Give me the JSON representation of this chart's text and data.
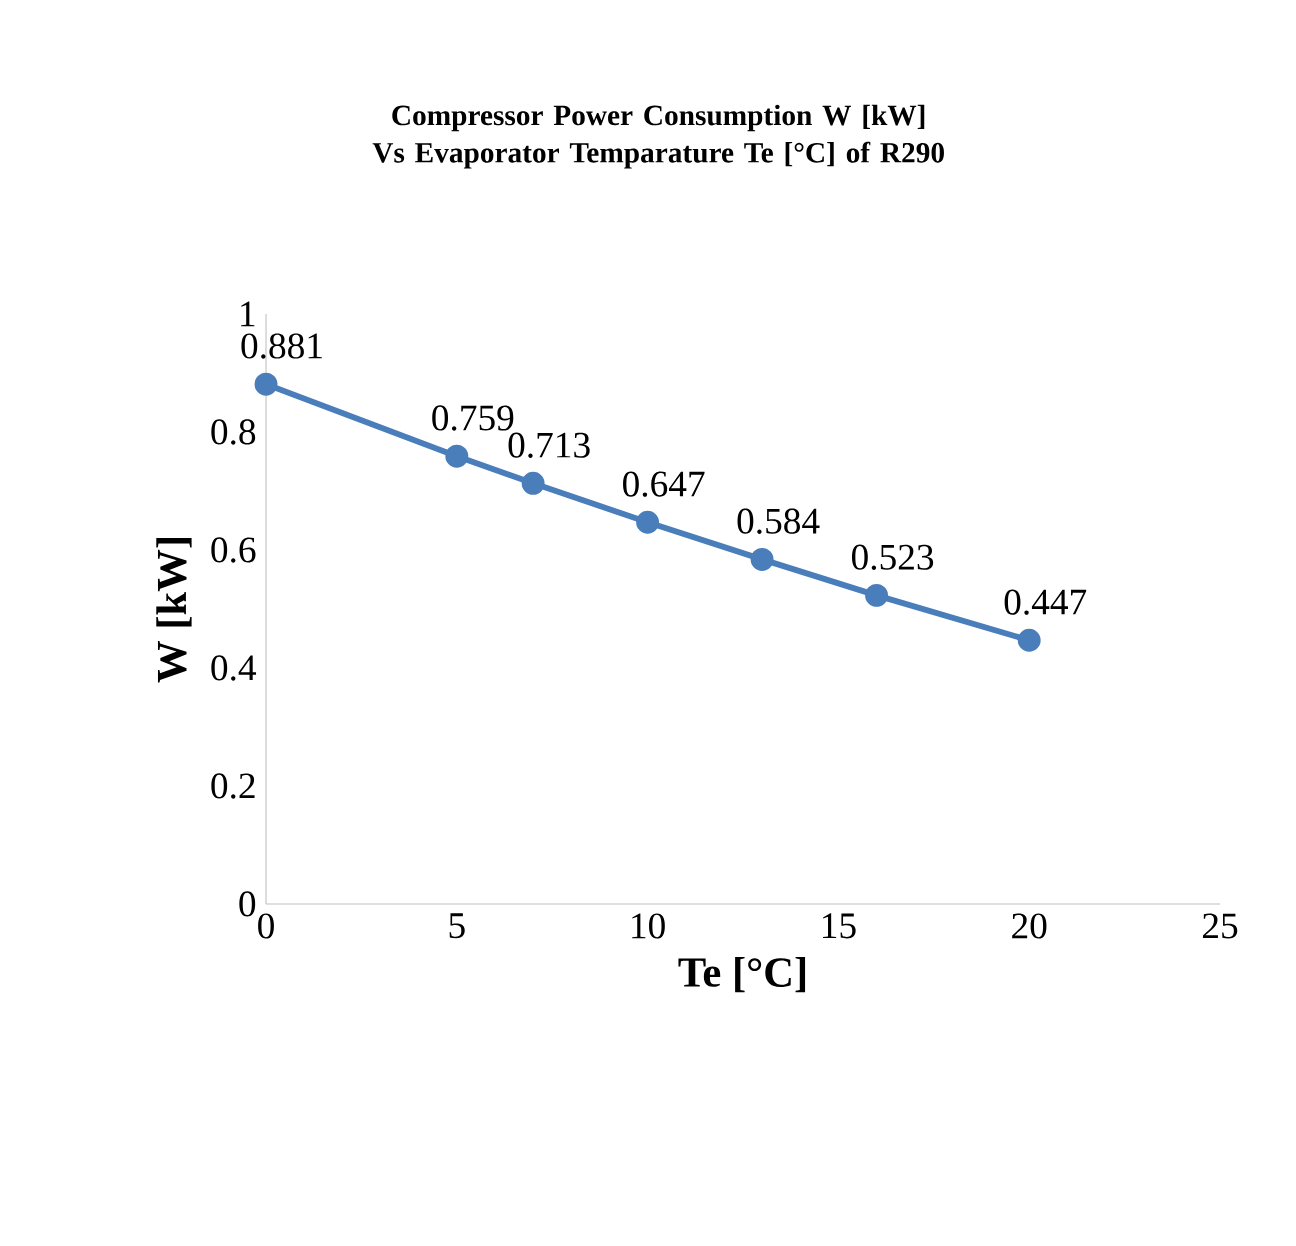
{
  "chart_data": {
    "type": "line",
    "title": "Compressor Power Consumption W [kW] Vs Evaporator Temparature Te [°C] of R290",
    "xlabel": "Te [°C]",
    "ylabel": "W [kW]",
    "x": [
      0,
      5,
      7,
      10,
      13,
      16,
      20
    ],
    "values": [
      0.881,
      0.759,
      0.713,
      0.647,
      0.584,
      0.523,
      0.447
    ],
    "color": "#4a7ebb",
    "marker": "circle",
    "data_labels": true,
    "xlim": [
      0,
      25
    ],
    "xticks": [
      0,
      5,
      10,
      15,
      20,
      25
    ],
    "ylim": [
      0,
      1
    ],
    "yticks": [
      0,
      0.2,
      0.4,
      0.6,
      0.8,
      1
    ]
  }
}
